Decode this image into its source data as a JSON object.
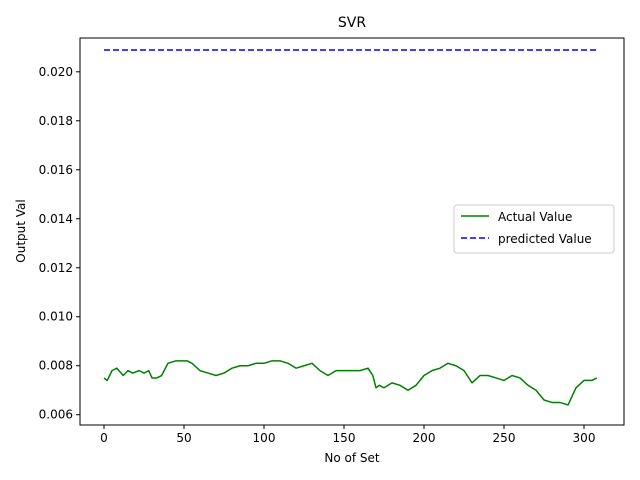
{
  "chart_data": {
    "type": "line",
    "title": "SVR",
    "xlabel": "No of Set",
    "ylabel": "Output Val",
    "xlim": [
      -15,
      325
    ],
    "ylim": [
      0.00558,
      0.02138
    ],
    "xticks": [
      0,
      50,
      100,
      150,
      200,
      250,
      300
    ],
    "xtick_labels": [
      "0",
      "50",
      "100",
      "150",
      "200",
      "250",
      "300"
    ],
    "yticks": [
      0.006,
      0.008,
      0.01,
      0.012,
      0.014,
      0.016,
      0.018,
      0.02
    ],
    "ytick_labels": [
      "0.006",
      "0.008",
      "0.010",
      "0.012",
      "0.014",
      "0.016",
      "0.018",
      "0.020"
    ],
    "grid": false,
    "legend_position": "center-right",
    "series": [
      {
        "name": "Actual Value",
        "color": "#008000",
        "style": "solid",
        "x": [
          0,
          2,
          5,
          8,
          12,
          15,
          18,
          22,
          25,
          28,
          30,
          33,
          36,
          40,
          45,
          48,
          52,
          55,
          60,
          65,
          70,
          75,
          80,
          85,
          90,
          95,
          100,
          105,
          110,
          115,
          120,
          125,
          130,
          135,
          140,
          145,
          150,
          155,
          160,
          165,
          168,
          170,
          172,
          175,
          180,
          185,
          190,
          195,
          200,
          205,
          210,
          215,
          220,
          225,
          230,
          235,
          240,
          245,
          250,
          255,
          260,
          265,
          270,
          275,
          280,
          285,
          290,
          295,
          300,
          305,
          308
        ],
        "y": [
          0.0075,
          0.0074,
          0.0078,
          0.0079,
          0.0076,
          0.0078,
          0.0077,
          0.0078,
          0.0077,
          0.0078,
          0.0075,
          0.0075,
          0.0076,
          0.0081,
          0.0082,
          0.0082,
          0.0082,
          0.0081,
          0.0078,
          0.0077,
          0.0076,
          0.0077,
          0.0079,
          0.008,
          0.008,
          0.0081,
          0.0081,
          0.0082,
          0.0082,
          0.0081,
          0.0079,
          0.008,
          0.0081,
          0.0078,
          0.0076,
          0.0078,
          0.0078,
          0.0078,
          0.0078,
          0.0079,
          0.0076,
          0.0071,
          0.0072,
          0.0071,
          0.0073,
          0.0072,
          0.007,
          0.0072,
          0.0076,
          0.0078,
          0.0079,
          0.0081,
          0.008,
          0.0078,
          0.0073,
          0.0076,
          0.0076,
          0.0075,
          0.0074,
          0.0076,
          0.0075,
          0.0072,
          0.007,
          0.0066,
          0.0065,
          0.0065,
          0.0064,
          0.0071,
          0.0074,
          0.0074,
          0.0075
        ]
      },
      {
        "name": "predicted Value",
        "color": "#0000ff",
        "style": "dashed",
        "x": [
          0,
          308
        ],
        "y": [
          0.02089,
          0.02089
        ]
      }
    ]
  }
}
